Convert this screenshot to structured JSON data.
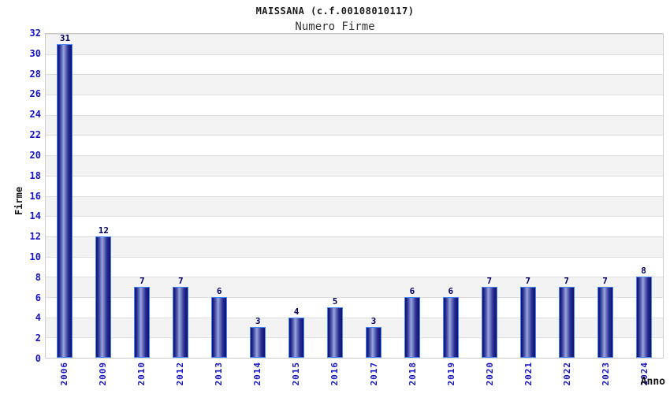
{
  "header": {
    "title": "MAISSANA (c.f.00108010117)",
    "subtitle": "Numero Firme"
  },
  "chart_data": {
    "type": "bar",
    "title": "MAISSANA (c.f.00108010117)",
    "subtitle": "Numero Firme",
    "categories": [
      "2006",
      "2009",
      "2010",
      "2012",
      "2013",
      "2014",
      "2015",
      "2016",
      "2017",
      "2018",
      "2019",
      "2020",
      "2021",
      "2022",
      "2023",
      "2024"
    ],
    "values": [
      31,
      12,
      7,
      7,
      6,
      3,
      4,
      5,
      3,
      6,
      6,
      7,
      7,
      7,
      7,
      8
    ],
    "xlabel": "Anno",
    "ylabel": "Firme",
    "ylim": [
      0,
      32
    ],
    "ytick_step": 2,
    "grid": "horizontal alternating bands every 2 units, gray/white, light gridlines",
    "legend": "none",
    "value_labels": "above each bar"
  },
  "colors": {
    "tick_label": "#1414cc",
    "value_label": "#000066",
    "bar_border": "#4585f5",
    "bar_gradient_dark": "#10106e",
    "bar_gradient_light": "#9aa6de",
    "band_gray": "#f3f3f3",
    "band_white": "#ffffff",
    "grid_line": "#dedede",
    "plot_border": "#cccccc",
    "title_color": "#1a1a1a",
    "axis_title_color": "#111111",
    "background": "#ffffff"
  }
}
